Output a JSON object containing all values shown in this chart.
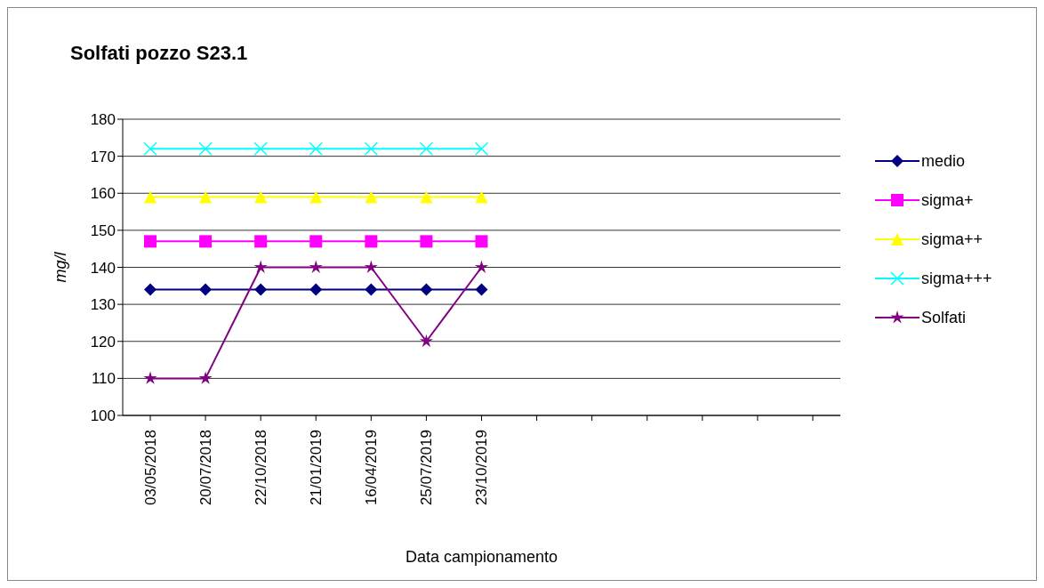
{
  "chart_data": {
    "type": "line",
    "title": "Solfati pozzo S23.1",
    "xlabel": "Data campionamento",
    "ylabel": "mg/l",
    "categories": [
      "03/05/2018",
      "20/07/2018",
      "22/10/2018",
      "21/01/2019",
      "16/04/2019",
      "25/07/2019",
      "23/10/2019",
      null,
      null,
      null,
      null,
      null,
      null
    ],
    "series": [
      {
        "name": "medio",
        "color": "#000080",
        "marker": "diamond",
        "values": [
          134,
          134,
          134,
          134,
          134,
          134,
          134,
          null,
          null,
          null,
          null,
          null,
          null
        ]
      },
      {
        "name": "sigma+",
        "color": "#ff00ff",
        "marker": "square",
        "values": [
          147,
          147,
          147,
          147,
          147,
          147,
          147,
          null,
          null,
          null,
          null,
          null,
          null
        ]
      },
      {
        "name": "sigma++",
        "color": "#ffff00",
        "marker": "triangle",
        "values": [
          159,
          159,
          159,
          159,
          159,
          159,
          159,
          null,
          null,
          null,
          null,
          null,
          null
        ]
      },
      {
        "name": "sigma+++",
        "color": "#00ffff",
        "marker": "cross",
        "values": [
          172,
          172,
          172,
          172,
          172,
          172,
          172,
          null,
          null,
          null,
          null,
          null,
          null
        ]
      },
      {
        "name": "Solfati",
        "color": "#800080",
        "marker": "star",
        "values": [
          110,
          110,
          140,
          140,
          140,
          120,
          140,
          null,
          null,
          null,
          null,
          null,
          null
        ]
      }
    ],
    "ylim": [
      100,
      180
    ],
    "yticks": [
      100,
      110,
      120,
      130,
      140,
      150,
      160,
      170,
      180
    ],
    "grid": "y",
    "legend": "right"
  }
}
